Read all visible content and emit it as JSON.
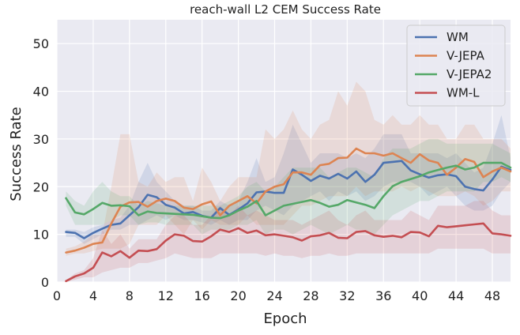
{
  "chart_data": {
    "type": "line",
    "title": "reach-wall L2 CEM Success Rate",
    "xlabel": "Epoch",
    "ylabel": "Success Rate",
    "xlim": [
      0,
      50
    ],
    "ylim": [
      0,
      55
    ],
    "xticks": [
      0,
      4,
      8,
      12,
      16,
      20,
      24,
      28,
      32,
      36,
      40,
      44,
      48
    ],
    "yticks": [
      0,
      10,
      20,
      30,
      40,
      50
    ],
    "grid": true,
    "background": "#eaeaf2",
    "legend_position": "top-right",
    "x": [
      1,
      2,
      3,
      4,
      5,
      6,
      7,
      8,
      9,
      10,
      11,
      12,
      13,
      14,
      15,
      16,
      17,
      18,
      19,
      20,
      21,
      22,
      23,
      24,
      25,
      26,
      27,
      28,
      29,
      30,
      31,
      32,
      33,
      34,
      35,
      36,
      37,
      38,
      39,
      40,
      41,
      42,
      43,
      44,
      45,
      46,
      47,
      48,
      49,
      50
    ],
    "series": [
      {
        "name": "WM",
        "color": "#4c72b0",
        "values": [
          10.5,
          10.3,
          9.2,
          10.3,
          11.2,
          12.0,
          12.3,
          14.0,
          15.7,
          18.3,
          17.8,
          16.2,
          15.6,
          14.4,
          14.7,
          13.9,
          13.5,
          15.5,
          14.1,
          15.2,
          16.5,
          18.8,
          19.0,
          18.7,
          18.7,
          23.6,
          22.5,
          21.2,
          22.3,
          21.7,
          22.7,
          21.7,
          23.2,
          21.0,
          22.5,
          25.0,
          25.2,
          25.4,
          23.4,
          22.6,
          21.9,
          22.4,
          22.6,
          22.2,
          20.0,
          19.5,
          19.2,
          21.5,
          24.2,
          23.5
        ],
        "upper": [
          11,
          11,
          10.5,
          11.5,
          12,
          13,
          13.5,
          16,
          21,
          25,
          21,
          19,
          17,
          16,
          16,
          15,
          15,
          17,
          16,
          17,
          21,
          26,
          21,
          22,
          27,
          33,
          29,
          25,
          27,
          27,
          27,
          26,
          27,
          26,
          28,
          31,
          31,
          31,
          27,
          27,
          27,
          27,
          26,
          27,
          25,
          23,
          24,
          29,
          35,
          26
        ],
        "lower": [
          9.5,
          9.5,
          8,
          9,
          10,
          11,
          11,
          12,
          12,
          13,
          14,
          13,
          14,
          13,
          13,
          12.5,
          12,
          13,
          12,
          13,
          13,
          15,
          16,
          15,
          14,
          16,
          17,
          18,
          19,
          17,
          19,
          18,
          19,
          17,
          18,
          20,
          21,
          21,
          21,
          20,
          18,
          19,
          20,
          18,
          16,
          15,
          15,
          16,
          19,
          21
        ]
      },
      {
        "name": "V-JEPA",
        "color": "#dd8452",
        "values": [
          6.2,
          6.6,
          7.2,
          8.0,
          8.3,
          12.3,
          15.8,
          16.7,
          16.8,
          15.8,
          17.0,
          17.5,
          17.0,
          15.6,
          15.3,
          16.3,
          16.9,
          14.0,
          16.0,
          17.0,
          18.0,
          16.5,
          19.0,
          20.0,
          20.5,
          23.0,
          23.0,
          22.5,
          24.5,
          24.8,
          26.0,
          26.1,
          28.0,
          27.0,
          27.0,
          26.5,
          27.0,
          26.0,
          25.0,
          26.8,
          25.5,
          25.0,
          22.5,
          24.0,
          25.8,
          25.2,
          22.0,
          23.2,
          24.0,
          23.2
        ],
        "upper": [
          7,
          7.5,
          8.5,
          10,
          10,
          20,
          31,
          31,
          21,
          20,
          23,
          21,
          22,
          22,
          17,
          24,
          21,
          17,
          20,
          22,
          22,
          22,
          32,
          30,
          32,
          36,
          32,
          30,
          33,
          34,
          40,
          37,
          42,
          40,
          34,
          33,
          35,
          33,
          33,
          35,
          33,
          33,
          30,
          30,
          33,
          33,
          30,
          30,
          30,
          28
        ],
        "lower": [
          5.5,
          6,
          6,
          6.5,
          7,
          7,
          7,
          8,
          12,
          12,
          12,
          14,
          12,
          10,
          13,
          11,
          13,
          12,
          12,
          12,
          14,
          12,
          12,
          12,
          12,
          14,
          16,
          16,
          17,
          18,
          18,
          18,
          20,
          18,
          19,
          19,
          19,
          20,
          19,
          20,
          19,
          18,
          18,
          18,
          19,
          18,
          16,
          17,
          19,
          19
        ]
      },
      {
        "name": "V-JEPA2",
        "color": "#55a868",
        "values": [
          17.6,
          14.6,
          14.2,
          15.3,
          16.6,
          16.0,
          16.1,
          15.9,
          14.0,
          14.8,
          14.5,
          14.4,
          14.3,
          14.2,
          14.1,
          13.8,
          13.5,
          13.4,
          14.0,
          15.0,
          15.8,
          17.0,
          14.0,
          15.0,
          16.0,
          16.4,
          16.8,
          17.2,
          16.6,
          15.8,
          16.2,
          17.2,
          16.7,
          16.2,
          15.5,
          18.0,
          20.1,
          21.0,
          21.6,
          22.2,
          23.0,
          23.5,
          24.0,
          24.4,
          23.6,
          24.0,
          25.0,
          25.0,
          25.0,
          24.0
        ],
        "upper": [
          19,
          17,
          16,
          19,
          21,
          19,
          18,
          18,
          16,
          17,
          16.5,
          16,
          16,
          16,
          16,
          16,
          16,
          16,
          17,
          18,
          20,
          21,
          19,
          20,
          22,
          24,
          24,
          24,
          24,
          22,
          23,
          24,
          24,
          23,
          22,
          26,
          28,
          28,
          28,
          29,
          30,
          30,
          29,
          29,
          29,
          29,
          29,
          29,
          28,
          27
        ],
        "lower": [
          16,
          12,
          12,
          12,
          12,
          13,
          14,
          14,
          12,
          12.5,
          12.5,
          12,
          12,
          12,
          12,
          10,
          11,
          11,
          11,
          12,
          12,
          13,
          10,
          11,
          11,
          10,
          11,
          12,
          11,
          10,
          11,
          12,
          11,
          11,
          10,
          12,
          14,
          15,
          16,
          17,
          17,
          18,
          19,
          19,
          19,
          19,
          21,
          21,
          22,
          21
        ]
      },
      {
        "name": "WM-L",
        "color": "#c44e52",
        "values": [
          0.2,
          1.2,
          1.8,
          3.0,
          6.2,
          5.4,
          6.5,
          5.1,
          6.6,
          6.5,
          6.9,
          8.7,
          10.0,
          9.7,
          8.6,
          8.5,
          9.6,
          11.0,
          10.5,
          11.3,
          10.3,
          10.8,
          9.8,
          10.0,
          9.7,
          9.4,
          8.7,
          9.6,
          9.8,
          10.3,
          9.3,
          9.2,
          10.5,
          10.7,
          9.8,
          9.5,
          9.7,
          9.4,
          10.5,
          10.4,
          9.6,
          11.8,
          11.5,
          11.7,
          11.9,
          12.1,
          12.3,
          10.2,
          10.0,
          9.7
        ],
        "upper": [
          0.4,
          1.8,
          2.5,
          5,
          11,
          8,
          10,
          7,
          9,
          9,
          9,
          12,
          14,
          14,
          12,
          12,
          14,
          16,
          14,
          16,
          14,
          15,
          14,
          13,
          13,
          13,
          12,
          13,
          14,
          15,
          13,
          12,
          14,
          15,
          13,
          13,
          13,
          13,
          15,
          14,
          13,
          16,
          16,
          16,
          16,
          17,
          17,
          15,
          14,
          14
        ],
        "lower": [
          0,
          0.5,
          1,
          1,
          2,
          2.5,
          3,
          3,
          4,
          4,
          4.5,
          5,
          6,
          5.5,
          5,
          5,
          5,
          6,
          6,
          6,
          6,
          6,
          5.5,
          6,
          5.5,
          5.5,
          5,
          5.5,
          5.5,
          6,
          5.5,
          5.5,
          6,
          6,
          6,
          6,
          6,
          6,
          6,
          6,
          6,
          7,
          7,
          7,
          7,
          7,
          7,
          6,
          6,
          6
        ]
      }
    ]
  }
}
